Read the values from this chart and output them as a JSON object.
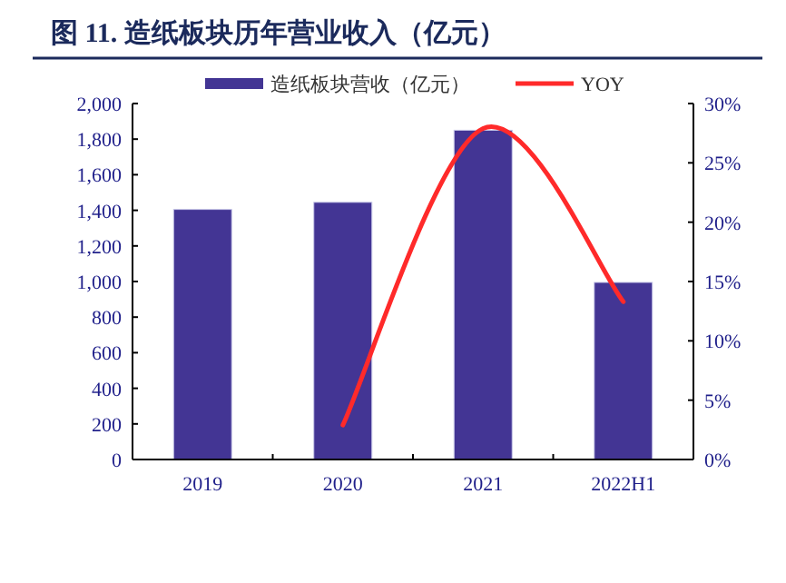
{
  "chart_data": {
    "type": "bar",
    "title": "图 11. 造纸板块历年营业收入（亿元）",
    "categories": [
      "2019",
      "2020",
      "2021",
      "2022H1"
    ],
    "series": [
      {
        "name": "造纸板块营收（亿元）",
        "color": "#433594",
        "values": [
          1405,
          1445,
          1850,
          995
        ]
      },
      {
        "name": "YOY",
        "type": "line",
        "axis": "y2",
        "color": "#ff2a2a",
        "values": [
          null,
          2.9,
          27.9,
          13.3
        ]
      }
    ],
    "ylim": [
      0,
      2000
    ],
    "yticks": [
      0,
      200,
      400,
      600,
      800,
      {
        "value": 1000,
        "label": "1,000"
      },
      {
        "value": 1200,
        "label": "1,200"
      },
      {
        "value": 1400,
        "label": "1,400"
      },
      {
        "value": 1600,
        "label": "1,600"
      },
      {
        "value": 1800,
        "label": "1,800"
      },
      {
        "value": 2000,
        "label": "2,000"
      }
    ],
    "y2lim": [
      0,
      30
    ],
    "y2ticks": [
      {
        "value": 0,
        "label": "0%"
      },
      {
        "value": 5,
        "label": "5%"
      },
      {
        "value": 10,
        "label": "10%"
      },
      {
        "value": 15,
        "label": "15%"
      },
      {
        "value": 20,
        "label": "20%"
      },
      {
        "value": 25,
        "label": "25%"
      },
      {
        "value": 30,
        "label": "30%"
      }
    ],
    "legend": "top"
  }
}
